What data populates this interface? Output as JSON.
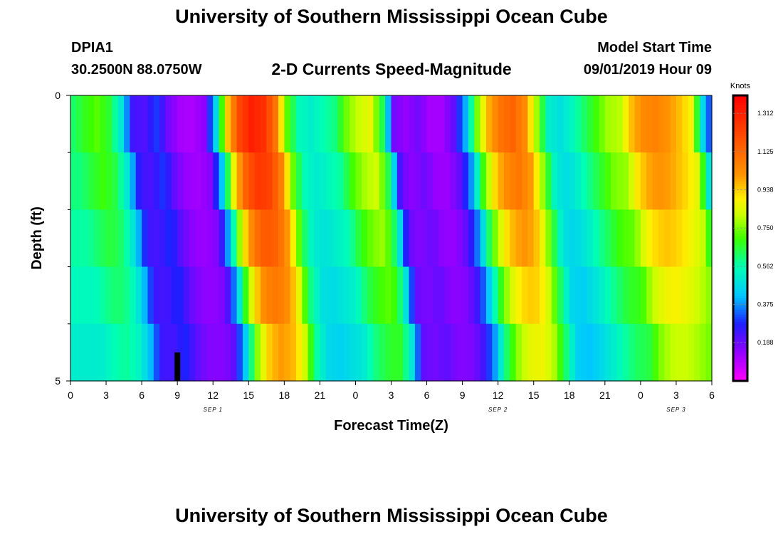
{
  "header": {
    "title_top": "University of Southern Mississippi Ocean Cube",
    "station_id": "DPIA1",
    "station_coords": "30.2500N 88.0750W",
    "plot_title": "2-D Currents Speed-Magnitude",
    "model_start_label": "Model Start Time",
    "model_start_value": "09/01/2019 Hour 09",
    "title_bottom": "University of Southern Mississippi Ocean Cube"
  },
  "chart_data": {
    "type": "heatmap",
    "title": "2-D Currents Speed-Magnitude",
    "xlabel": "Forecast Time(Z)",
    "ylabel": "Depth (ft)",
    "x_tick_labels": [
      "0",
      "3",
      "6",
      "9",
      "12",
      "15",
      "18",
      "21",
      "0",
      "3",
      "6",
      "9",
      "12",
      "15",
      "18",
      "21",
      "0",
      "3",
      "6"
    ],
    "x_range_hours": [
      0,
      54
    ],
    "x_tick_step_hours": 3,
    "day_labels": [
      {
        "text": "SEP 1",
        "hour": 12
      },
      {
        "text": "SEP 2",
        "hour": 36
      },
      {
        "text": "SEP 3",
        "hour": 51
      }
    ],
    "y_range_ft": [
      0,
      5
    ],
    "y_tick_labels": [
      {
        "value": 0,
        "label": "0"
      },
      {
        "value": 5,
        "label": "5"
      }
    ],
    "y_minor_ticks_ft": [
      1,
      2,
      3,
      4
    ],
    "depth_layer_count": 5,
    "current_time_marker_hour": 9,
    "colorbar": {
      "units": "Knots",
      "min": 0.0,
      "max": 1.4,
      "tick_values": [
        0.188,
        0.375,
        0.562,
        0.75,
        0.938,
        1.125,
        1.312
      ],
      "tick_labels": [
        "0.188",
        "0.375",
        "0.562",
        "0.750",
        "0.938",
        "1.125",
        "1.312"
      ]
    },
    "speed_profile": {
      "description": "Approximate surface current speed (knots) at each hour 0-54, with per-hour depth factor (amplitude reduced with depth, with layers lagging in time).",
      "surface_knots_by_hour": [
        0.62,
        0.68,
        0.72,
        0.66,
        0.5,
        0.24,
        0.22,
        0.3,
        0.18,
        0.12,
        0.11,
        0.15,
        0.46,
        0.95,
        1.22,
        1.32,
        1.28,
        1.1,
        0.72,
        0.55,
        0.52,
        0.56,
        0.6,
        0.74,
        0.82,
        0.86,
        0.64,
        0.18,
        0.14,
        0.18,
        0.12,
        0.12,
        0.2,
        0.4,
        0.75,
        0.98,
        1.1,
        1.14,
        1.04,
        0.78,
        0.52,
        0.48,
        0.54,
        0.62,
        0.7,
        0.78,
        0.8,
        0.96,
        1.04,
        1.06,
        1.02,
        0.96,
        0.88,
        0.46,
        0.2
      ],
      "depth_factors": [
        1.0,
        0.94,
        0.86,
        0.78,
        0.7,
        0.62
      ]
    }
  }
}
